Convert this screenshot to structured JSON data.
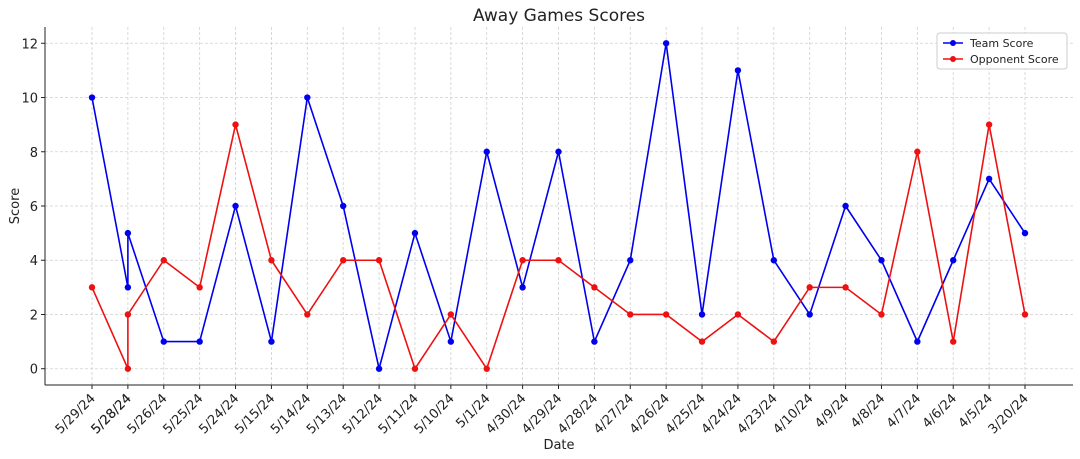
{
  "chart_data": {
    "type": "line",
    "title": "Away Games Scores",
    "x_label": "Date",
    "y_label": "Score",
    "categories": [
      "5/29/24",
      "5/28/24",
      "5/28/24",
      "5/26/24",
      "5/25/24",
      "5/24/24",
      "5/15/24",
      "5/14/24",
      "5/13/24",
      "5/12/24",
      "5/11/24",
      "5/10/24",
      "5/1/24",
      "4/30/24",
      "4/29/24",
      "4/28/24",
      "4/27/24",
      "4/26/24",
      "4/25/24",
      "4/24/24",
      "4/23/24",
      "4/10/24",
      "4/9/24",
      "4/8/24",
      "4/7/24",
      "4/6/24",
      "4/5/24",
      "3/20/24"
    ],
    "series": [
      {
        "name": "Team Score",
        "color": "#0000ee",
        "values": [
          10,
          3,
          5,
          1,
          1,
          6,
          1,
          10,
          6,
          0,
          5,
          1,
          8,
          3,
          8,
          1,
          4,
          12,
          2,
          11,
          4,
          2,
          6,
          4,
          1,
          4,
          7,
          5
        ]
      },
      {
        "name": "Opponent Score",
        "color": "#ee1111",
        "values": [
          3,
          0,
          2,
          4,
          3,
          9,
          4,
          2,
          4,
          4,
          0,
          2,
          0,
          4,
          4,
          3,
          2,
          2,
          1,
          2,
          1,
          3,
          3,
          2,
          8,
          1,
          9,
          2
        ]
      }
    ],
    "ylim": [
      -0.6,
      12.6
    ],
    "yticks": [
      0,
      2,
      4,
      6,
      8,
      10,
      12
    ],
    "grid": true,
    "legend": "upper right"
  }
}
